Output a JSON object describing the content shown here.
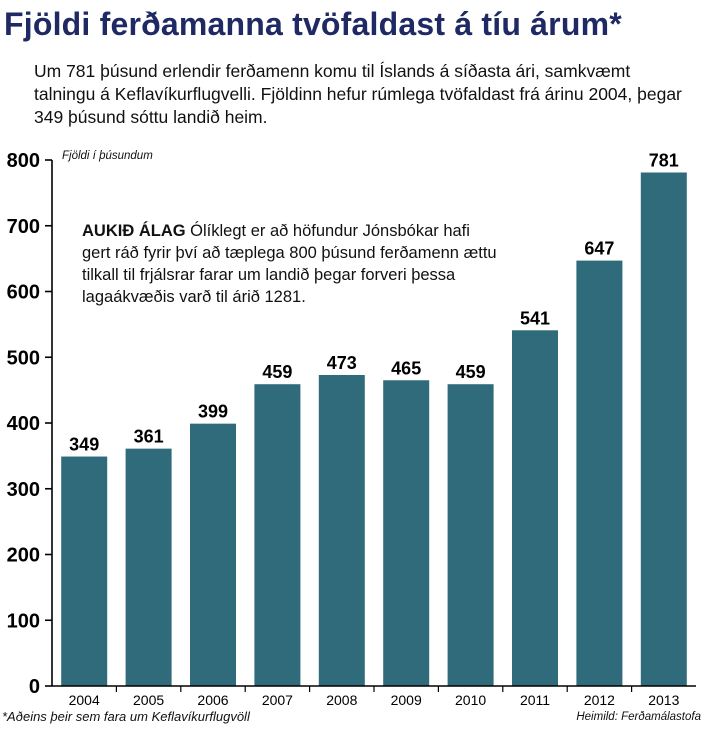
{
  "title": "Fjöldi ferðamanna tvöfaldast á tíu árum*",
  "subtitle": "Um 781 þúsund erlendir ferðamenn komu til Íslands á síðasta ári, samkvæmt talningu á Keflavíkurflugvelli. Fjöldinn hefur rúmlega tvöfaldast frá árinu 2004, þegar 349 þúsund sóttu landið heim.",
  "annotation": {
    "heading": "AUKIÐ ÁLAG",
    "text": "Ólíklegt er að höfundur Jónsbókar hafi gert ráð fyrir því að tæplega 800 þúsund ferðamenn ættu tilkall til frjálsrar farar um landið þegar forveri þessa lagaákvæðis varð til árið 1281."
  },
  "footnote": "*Aðeins þeir sem fara um Keflavíkurflugvöll",
  "source": "Heimild: Ferðamálastofa",
  "colors": {
    "bar": "#2f6b7a",
    "title": "#1f2a64",
    "axis": "#000000"
  },
  "chart_data": {
    "type": "bar",
    "ylabel": "Fjöldi í þúsundum",
    "categories": [
      "2004",
      "2005",
      "2006",
      "2007",
      "2008",
      "2009",
      "2010",
      "2011",
      "2012",
      "2013"
    ],
    "values": [
      349,
      361,
      399,
      459,
      473,
      465,
      459,
      541,
      647,
      781
    ],
    "ylim": [
      0,
      800
    ],
    "yticks": [
      0,
      100,
      200,
      300,
      400,
      500,
      600,
      700,
      800
    ],
    "grid": false,
    "data_labels": true
  }
}
